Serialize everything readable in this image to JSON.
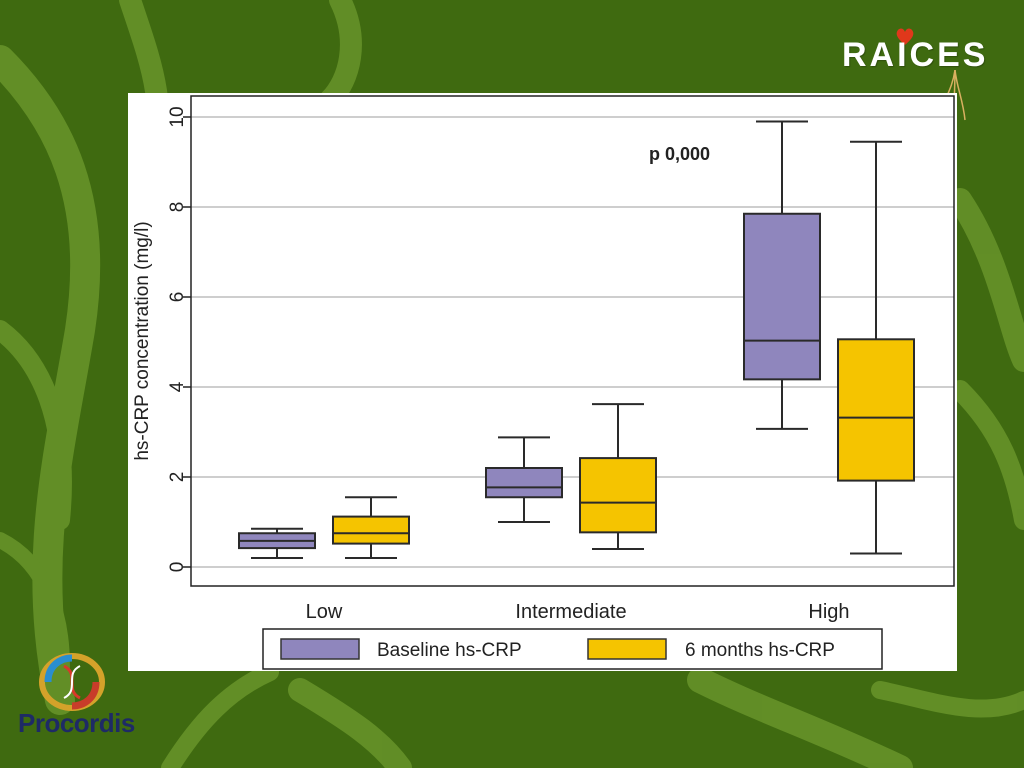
{
  "slide": {
    "brand_top": "RAICES",
    "brand_bottom": "Procordis",
    "background_color": "#3f6a10",
    "accent_branch_color": "#6e9a2e"
  },
  "chart_data": {
    "type": "box",
    "ylabel": "hs-CRP concentration (mg/l)",
    "xlabel": "",
    "ylim": [
      0,
      10
    ],
    "yticks": [
      "0",
      "2",
      "4",
      "6",
      "8",
      "10"
    ],
    "grid": true,
    "categories": [
      "Low",
      "Intermediate",
      "High"
    ],
    "annotation": "p 0,000",
    "legend_position": "bottom",
    "series": [
      {
        "name": "Baseline hs-CRP",
        "color": "#8f86bd",
        "boxes": [
          {
            "min": 0.2,
            "q1": 0.42,
            "median": 0.58,
            "q3": 0.75,
            "max": 0.85
          },
          {
            "min": 1.0,
            "q1": 1.55,
            "median": 1.77,
            "q3": 2.2,
            "max": 2.88
          },
          {
            "min": 3.07,
            "q1": 4.17,
            "median": 5.03,
            "q3": 7.85,
            "max": 9.9
          }
        ]
      },
      {
        "name": "6 months hs-CRP",
        "color": "#f5c400",
        "boxes": [
          {
            "min": 0.2,
            "q1": 0.52,
            "median": 0.75,
            "q3": 1.12,
            "max": 1.55
          },
          {
            "min": 0.4,
            "q1": 0.77,
            "median": 1.43,
            "q3": 2.42,
            "max": 3.62
          },
          {
            "min": 0.3,
            "q1": 1.92,
            "median": 3.32,
            "q3": 5.06,
            "max": 9.45
          }
        ]
      }
    ]
  }
}
